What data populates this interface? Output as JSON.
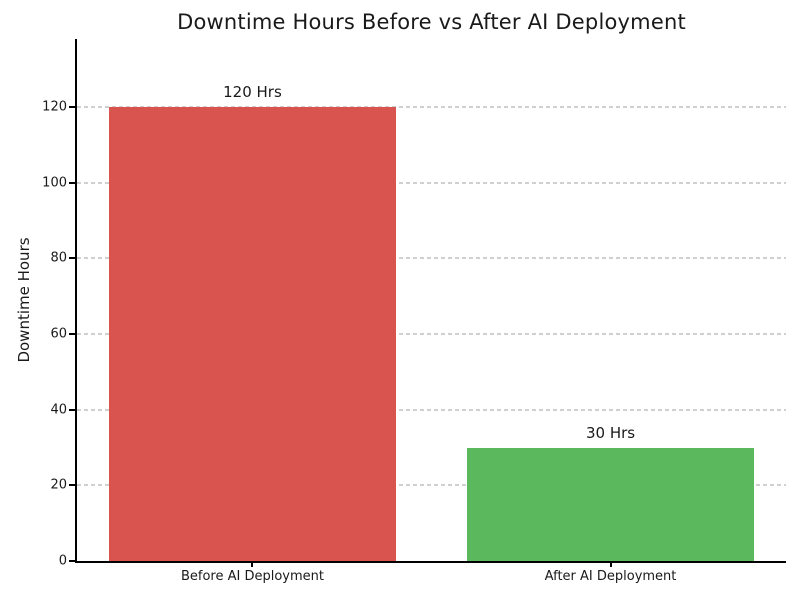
{
  "chart_data": {
    "type": "bar",
    "title": "Downtime Hours Before vs After AI Deployment",
    "categories": [
      "Before AI Deployment",
      "After AI Deployment"
    ],
    "values": [
      120,
      30
    ],
    "bar_labels": [
      "120 Hrs",
      "30 Hrs"
    ],
    "bar_colors": [
      "#d9534f",
      "#5cb85c"
    ],
    "xlabel": "",
    "ylabel": "Downtime Hours",
    "ylim": [
      0,
      138
    ],
    "yticks": [
      0,
      20,
      40,
      60,
      80,
      100,
      120
    ],
    "grid": {
      "axis": "y",
      "style": "dashed",
      "color": "#d0d0d0"
    },
    "legend": "none",
    "spines": {
      "top": false,
      "right": false,
      "left": true,
      "bottom": true
    },
    "axis_color": "#000000",
    "text_color": "#1a1a1a"
  }
}
